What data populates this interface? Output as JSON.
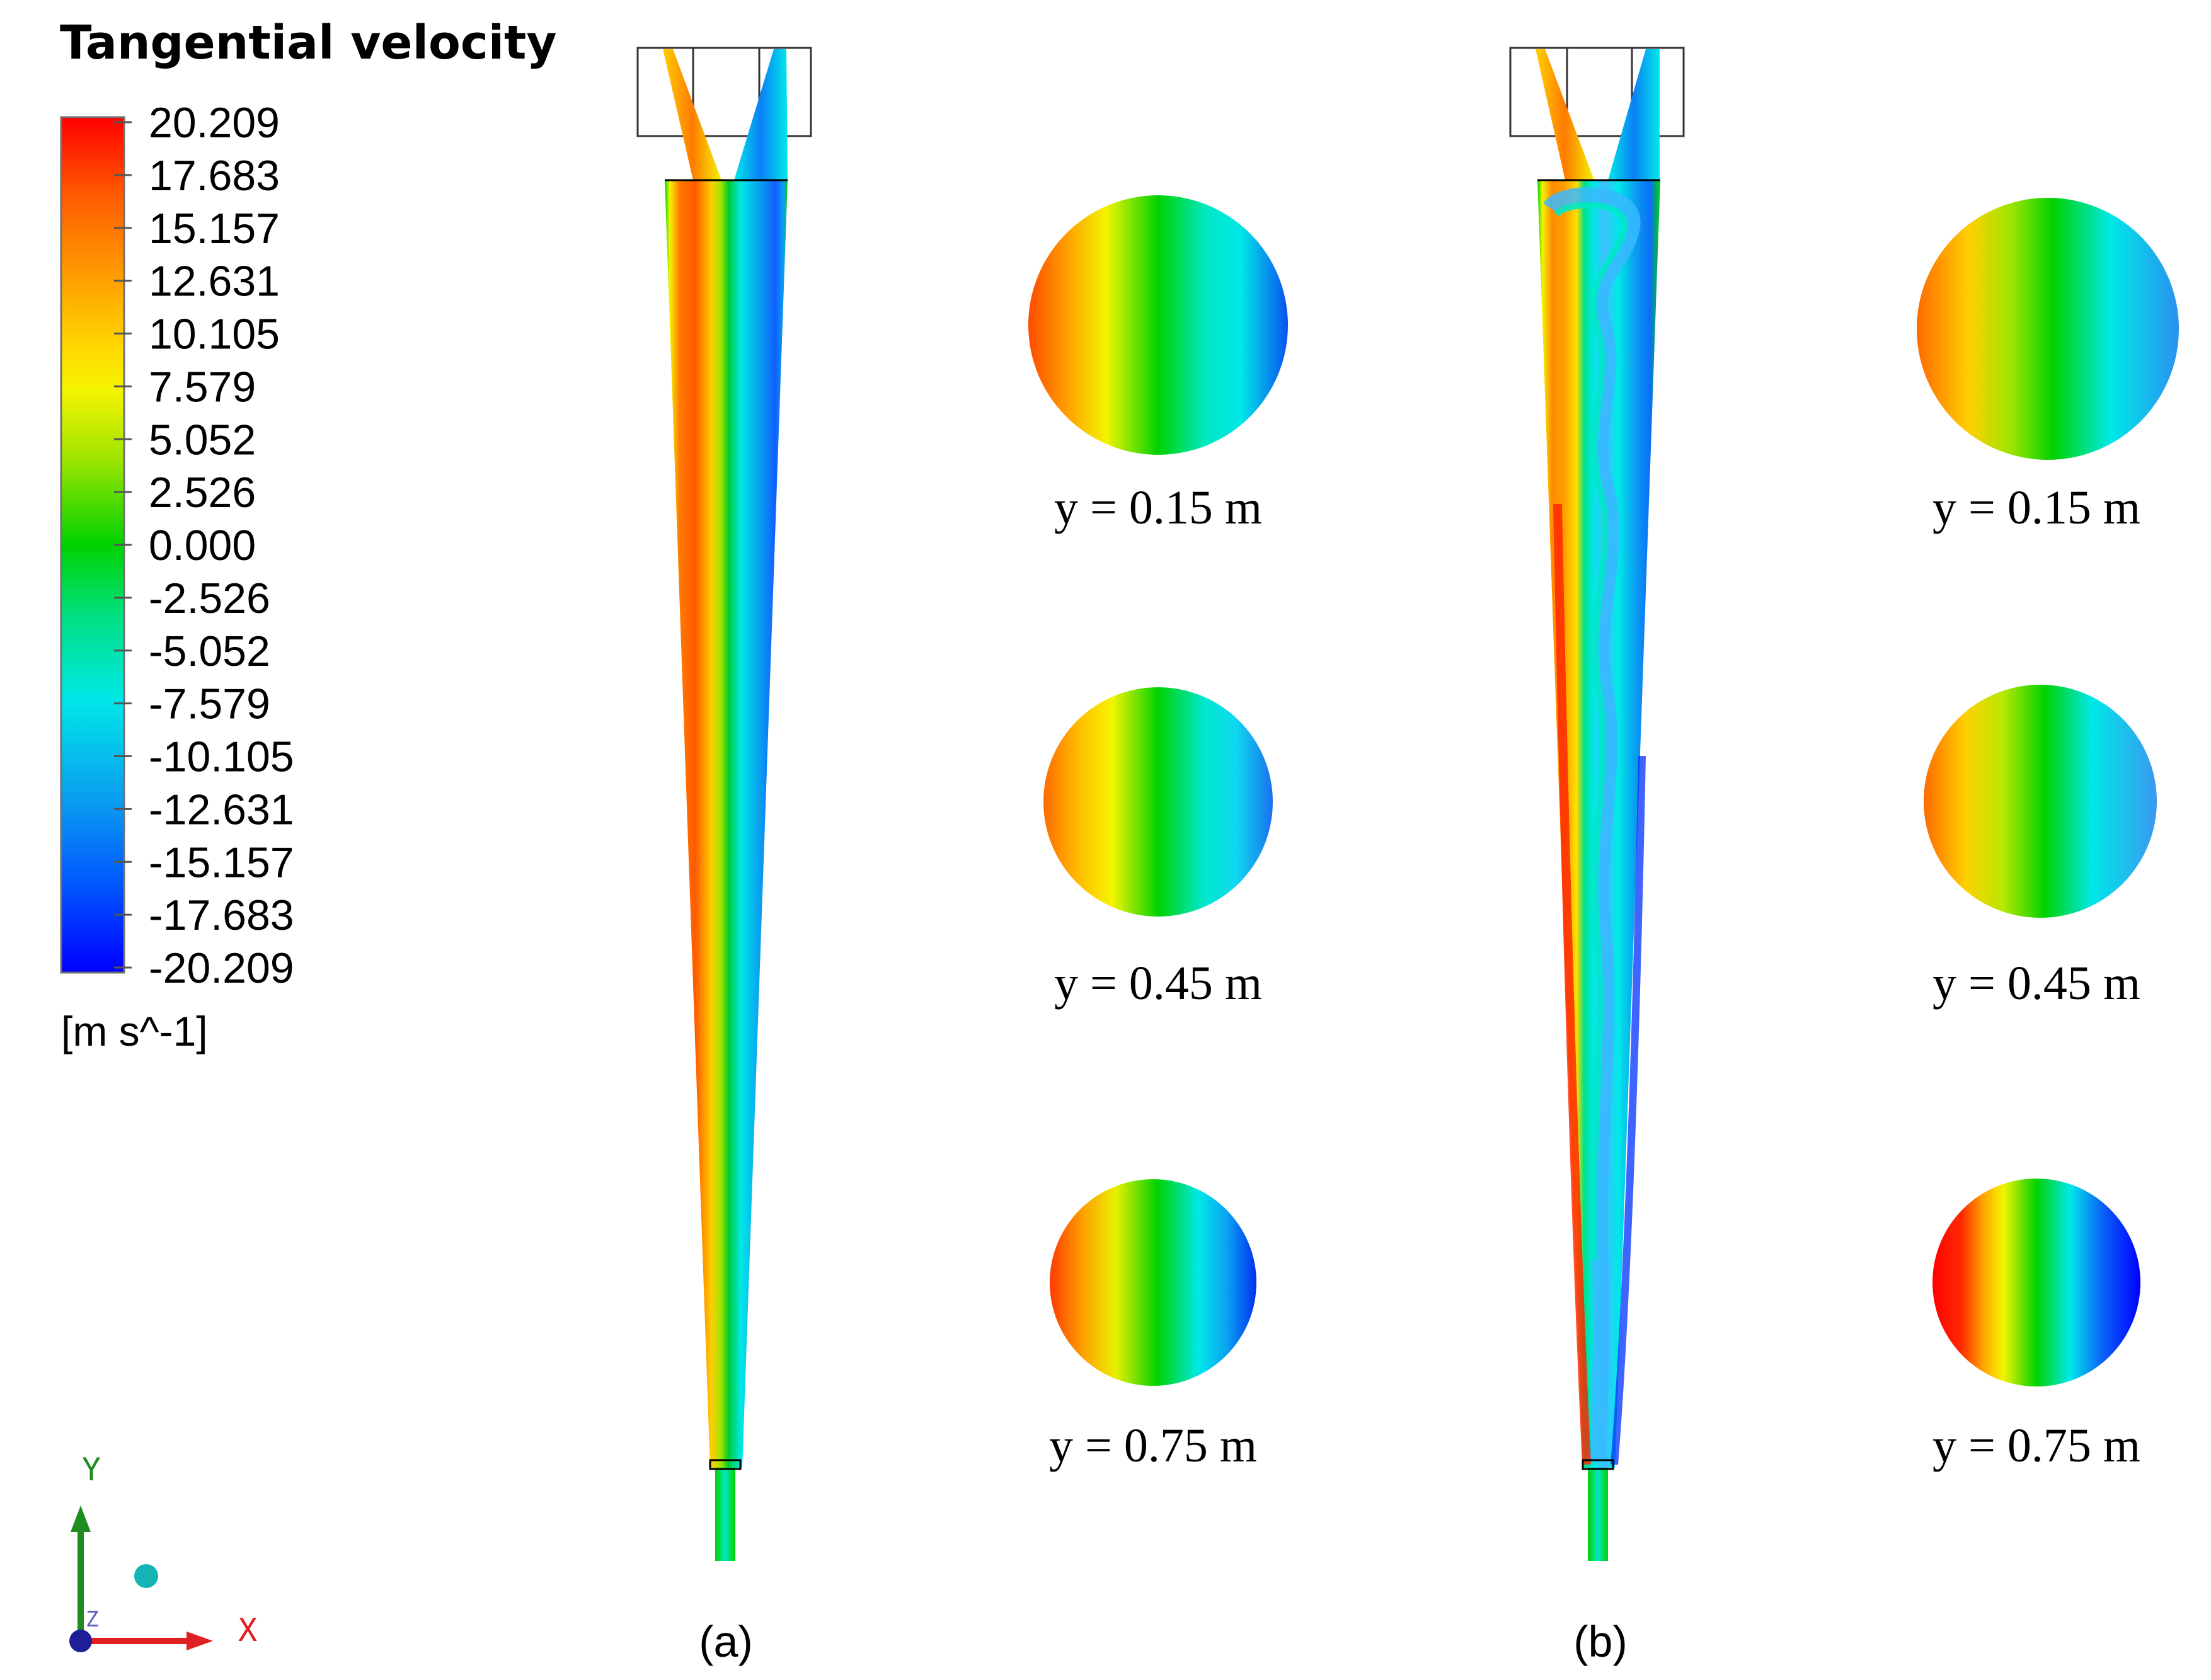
{
  "legend": {
    "title": "Tangential velocity",
    "unit": "[m s^-1]",
    "ticks": [
      "20.209",
      "17.683",
      "15.157",
      "12.631",
      "10.105",
      "7.579",
      "5.052",
      "2.526",
      "0.000",
      "-2.526",
      "-5.052",
      "-7.579",
      "-10.105",
      "-12.631",
      "-15.157",
      "-17.683",
      "-20.209"
    ],
    "max": 20.209,
    "min": -20.209,
    "colormap": [
      "#ff0000",
      "#ff5a00",
      "#ffa000",
      "#ffd800",
      "#f4f400",
      "#9ee400",
      "#00d200",
      "#00e07c",
      "#00e8e8",
      "#0a9cf0",
      "#0055ff",
      "#0000ff"
    ]
  },
  "axes_triad": {
    "y_label": "Y",
    "x_label": "X",
    "z_label": "Z",
    "y_color": "#1e8c1e",
    "x_color": "#e02020",
    "z_color": "#1e1e96",
    "dot_color": "#14b4b4"
  },
  "panels": [
    {
      "caption": "(a)",
      "sections": [
        {
          "label": "y = 0.15 m",
          "left_peak": 16.5,
          "right_peak": -15.0
        },
        {
          "label": "y = 0.45 m",
          "left_peak": 14.5,
          "right_peak": -13.5
        },
        {
          "label": "y = 0.75 m",
          "left_peak": 16.5,
          "right_peak": -17.0
        }
      ]
    },
    {
      "caption": "(b)",
      "sections": [
        {
          "label": "y = 0.15 m",
          "left_peak": 13.5,
          "right_peak": -12.0
        },
        {
          "label": "y = 0.45 m",
          "left_peak": 13.0,
          "right_peak": -11.5
        },
        {
          "label": "y = 0.75 m",
          "left_peak": 20.2,
          "right_peak": -20.2
        }
      ]
    }
  ]
}
